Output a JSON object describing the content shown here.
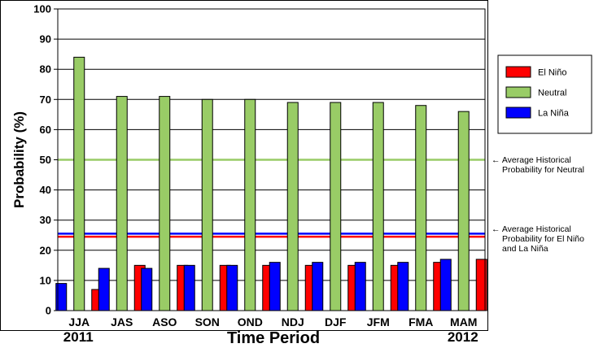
{
  "chart_data": {
    "type": "bar",
    "ylabel": "Probability (%)",
    "xlabel": "Time Period",
    "ylim": [
      0,
      100
    ],
    "yticks": [
      0,
      10,
      20,
      30,
      40,
      50,
      60,
      70,
      80,
      90,
      100
    ],
    "grid": true,
    "legend_position": "right",
    "categories": [
      "JJA",
      "JAS",
      "ASO",
      "SON",
      "OND",
      "NDJ",
      "DJF",
      "JFM",
      "FMA",
      "MAM"
    ],
    "year_labels": [
      {
        "category": "JJA",
        "text": "2011"
      },
      {
        "category": "MAM",
        "text": "2012"
      }
    ],
    "series": [
      {
        "name": "La Niña",
        "color": "#0000ff",
        "values": [
          9,
          14,
          14,
          15,
          15,
          16,
          16,
          16,
          16,
          17
        ]
      },
      {
        "name": "Neutral",
        "color": "#99cc66",
        "values": [
          84,
          71,
          71,
          70,
          70,
          69,
          69,
          69,
          68,
          66
        ]
      },
      {
        "name": "El Niño",
        "color": "#ff0000",
        "values": [
          7,
          15,
          15,
          15,
          15,
          15,
          15,
          15,
          16,
          17
        ]
      }
    ],
    "legend_entries": [
      {
        "name": "El Niño",
        "color": "#ff0000"
      },
      {
        "name": "Neutral",
        "color": "#99cc66"
      },
      {
        "name": "La Niña",
        "color": "#0000ff"
      }
    ],
    "reference_lines": [
      {
        "value": 50,
        "color": "#99cc66",
        "label_lines": [
          "← Average Historical",
          "Probability for Neutral"
        ]
      },
      {
        "value": 25.5,
        "color": "#0000ff",
        "label_lines": [
          "← Average Historical",
          "Probability for El Niño",
          "and La Niña"
        ]
      },
      {
        "value": 24.5,
        "color": "#ff0000",
        "label_lines": []
      }
    ]
  }
}
